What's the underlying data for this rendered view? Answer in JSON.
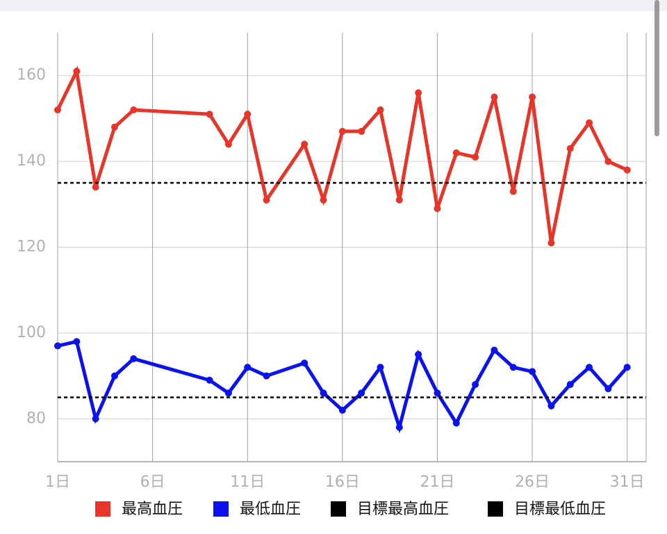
{
  "chart_data": {
    "type": "line",
    "x": [
      1,
      2,
      3,
      4,
      5,
      9,
      10,
      11,
      12,
      14,
      15,
      16,
      17,
      18,
      19,
      20,
      21,
      22,
      23,
      24,
      25,
      26,
      27,
      28,
      29,
      30,
      31
    ],
    "series": [
      {
        "name": "最高血圧",
        "color": "#e8352a",
        "values": [
          152,
          161,
          134,
          148,
          152,
          151,
          144,
          151,
          131,
          144,
          131,
          147,
          147,
          152,
          131,
          156,
          129,
          142,
          141,
          155,
          133,
          155,
          121,
          143,
          149,
          140,
          138
        ]
      },
      {
        "name": "最低血圧",
        "color": "#0a12f0",
        "values": [
          97,
          98,
          80,
          90,
          94,
          89,
          86,
          92,
          90,
          93,
          86,
          82,
          86,
          92,
          78,
          95,
          86,
          79,
          88,
          96,
          92,
          91,
          83,
          88,
          92,
          87,
          92
        ]
      },
      {
        "name": "目標最高血圧",
        "color": "#000000",
        "value": 135,
        "dashed": true
      },
      {
        "name": "目標最低血圧",
        "color": "#000000",
        "value": 85,
        "dashed": true
      }
    ],
    "xlim": [
      1,
      32
    ],
    "xticks": [
      {
        "value": 1,
        "label": "1日"
      },
      {
        "value": 6,
        "label": "6日"
      },
      {
        "value": 11,
        "label": "11日"
      },
      {
        "value": 16,
        "label": "16日"
      },
      {
        "value": 21,
        "label": "21日"
      },
      {
        "value": 26,
        "label": "26日"
      },
      {
        "value": 31,
        "label": "31日"
      }
    ],
    "ylim": [
      70,
      170
    ],
    "yticks": [
      80,
      100,
      120,
      140,
      160
    ],
    "grid": true
  }
}
